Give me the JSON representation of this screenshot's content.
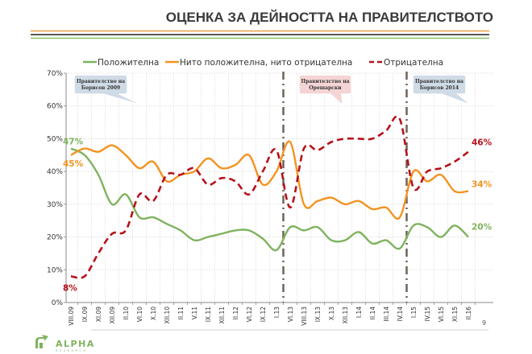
{
  "header": {
    "title": "ОЦЕНКА ЗА ДЕЙНОСТТА НА ПРАВИТЕЛСТВОТО",
    "stripe_colors": [
      "#f0a040",
      "#222222",
      "#8cbf6a"
    ]
  },
  "footer": {
    "logo_text": "ALPHA",
    "logo_subtext": "RESEARCH",
    "page_number": "9"
  },
  "chart_data": {
    "type": "line",
    "title": "",
    "xlabel": "",
    "ylabel": "",
    "ylim": [
      0,
      70
    ],
    "yticks": [
      "0%",
      "10%",
      "20%",
      "30%",
      "40%",
      "50%",
      "60%",
      "70%"
    ],
    "grid": true,
    "legend_position": "top",
    "categories": [
      "VIII.09",
      "IX.09",
      "XI.09",
      "XII.09",
      "II.10",
      "VI.10",
      "X.10",
      "XII.10",
      "II.11",
      "V.11",
      "IX.11",
      "XII.11",
      "II.12",
      "VI.12",
      "IX.12",
      "I.13",
      "VI.13",
      "VIII.13",
      "IX.13",
      "X.13",
      "XII.13",
      "I.14",
      "II.14",
      "III.14",
      "IV.14",
      "I.15",
      "IV.15",
      "VI.15",
      "XI.15",
      "II.16"
    ],
    "series": [
      {
        "name": "Положителна",
        "color": "#7fb35f",
        "style": "solid",
        "values": [
          47,
          45,
          39,
          30,
          33,
          26,
          26,
          24,
          22,
          19,
          20,
          21,
          22,
          22,
          19.5,
          16,
          23,
          22,
          23,
          19,
          19,
          21.5,
          18,
          19,
          16.5,
          23.5,
          23,
          20,
          23.5,
          20
        ],
        "start_label": "47%",
        "end_label": "20%"
      },
      {
        "name": "Нито положителна, нито отрицателна",
        "color": "#f39321",
        "style": "solid",
        "values": [
          45,
          47,
          46,
          48,
          45,
          41,
          43,
          37,
          39,
          40,
          44,
          41,
          42,
          45,
          36,
          40,
          49,
          30,
          31,
          32,
          30,
          31,
          28.5,
          29,
          26,
          40,
          37,
          39,
          34,
          34
        ],
        "start_label": "45%",
        "end_label": "34%"
      },
      {
        "name": "Отрицателна",
        "color": "#b5121b",
        "style": "dashed",
        "values": [
          8,
          8,
          15,
          21,
          22,
          33,
          31,
          39,
          39,
          41,
          36,
          38,
          37,
          33,
          40,
          46.5,
          29,
          47,
          46.5,
          49,
          50,
          50,
          50,
          52.5,
          56,
          35,
          40,
          41,
          43,
          46
        ],
        "start_label": "8%",
        "end_label": "46%"
      }
    ],
    "annotations": [
      {
        "text_lines": [
          "Правителство на",
          "Борисов 2009"
        ],
        "color": "#cfdbe6"
      },
      {
        "text_lines": [
          "Правителство на",
          "Орешарски"
        ],
        "color": "#f4d4d4"
      },
      {
        "text_lines": [
          "Правителство на",
          "Борисов 2014"
        ],
        "color": "#cfdbe6"
      }
    ],
    "period_dividers_after": [
      "I.13",
      "IV.14"
    ]
  }
}
